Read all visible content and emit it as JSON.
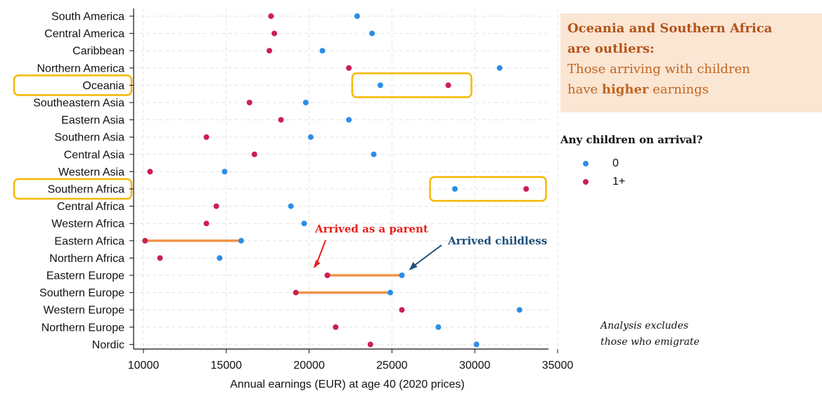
{
  "chart_data": {
    "type": "scatter",
    "xlabel": "Annual earnings (EUR) at age 40 (2020 prices)",
    "xlim": [
      10000,
      35000
    ],
    "xticks": [
      10000,
      15000,
      20000,
      25000,
      30000,
      35000
    ],
    "grid": true,
    "categories": [
      "South America",
      "Central America",
      "Caribbean",
      "Northern America",
      "Oceania",
      "Southeastern Asia",
      "Eastern Asia",
      "Southern Asia",
      "Central Asia",
      "Western Asia",
      "Southern Africa",
      "Central Africa",
      "Western Africa",
      "Eastern Africa",
      "Northern Africa",
      "Eastern Europe",
      "Southern Europe",
      "Western Europe",
      "Northern Europe",
      "Nordic"
    ],
    "series": [
      {
        "name": "0",
        "color": "#2b8de8",
        "values": [
          22900,
          23800,
          20800,
          31500,
          24300,
          19800,
          22400,
          20100,
          23900,
          14900,
          28800,
          18900,
          19700,
          15900,
          14600,
          25600,
          24900,
          32700,
          27800,
          30100
        ]
      },
      {
        "name": "1+",
        "color": "#cc1f52",
        "values": [
          17700,
          17900,
          17600,
          22400,
          28400,
          16400,
          18300,
          13800,
          16700,
          10400,
          33100,
          14400,
          13800,
          10100,
          11000,
          21100,
          19200,
          25600,
          21600,
          23700
        ]
      }
    ],
    "highlight_lines": [
      {
        "category": "Eastern Africa",
        "from": 10100,
        "to": 15900,
        "color": "#f0954a"
      },
      {
        "category": "Eastern Europe",
        "from": 21100,
        "to": 25600,
        "color": "#f0954a"
      },
      {
        "category": "Southern Europe",
        "from": 19200,
        "to": 24900,
        "color": "#f0954a"
      }
    ],
    "highlight_boxes": [
      {
        "category": "Oceania",
        "from": 22600,
        "to": 29800
      },
      {
        "category": "Southern Africa",
        "from": 27300,
        "to": 34300
      }
    ],
    "box_color": "#f5b800",
    "annotations": [
      {
        "text": "Arrived as a parent",
        "color": "#e8201e",
        "category": "Eastern Europe",
        "x": 21100
      },
      {
        "text": "Arrived childless",
        "color": "#1f4e7a",
        "category": "Eastern Europe",
        "x": 25600
      }
    ],
    "legend": {
      "title": "Any children on arrival?",
      "placement": "right"
    }
  },
  "callout": {
    "headline_1": "Oceania and Southern Africa",
    "headline_2": "are outliers:",
    "line_1": "Those arriving with children",
    "line_2_pre": "have ",
    "line_2_bold": "higher",
    "line_2_post": " earnings"
  },
  "footnote": {
    "line_1": "Analysis excludes",
    "line_2": "those who emigrate"
  }
}
